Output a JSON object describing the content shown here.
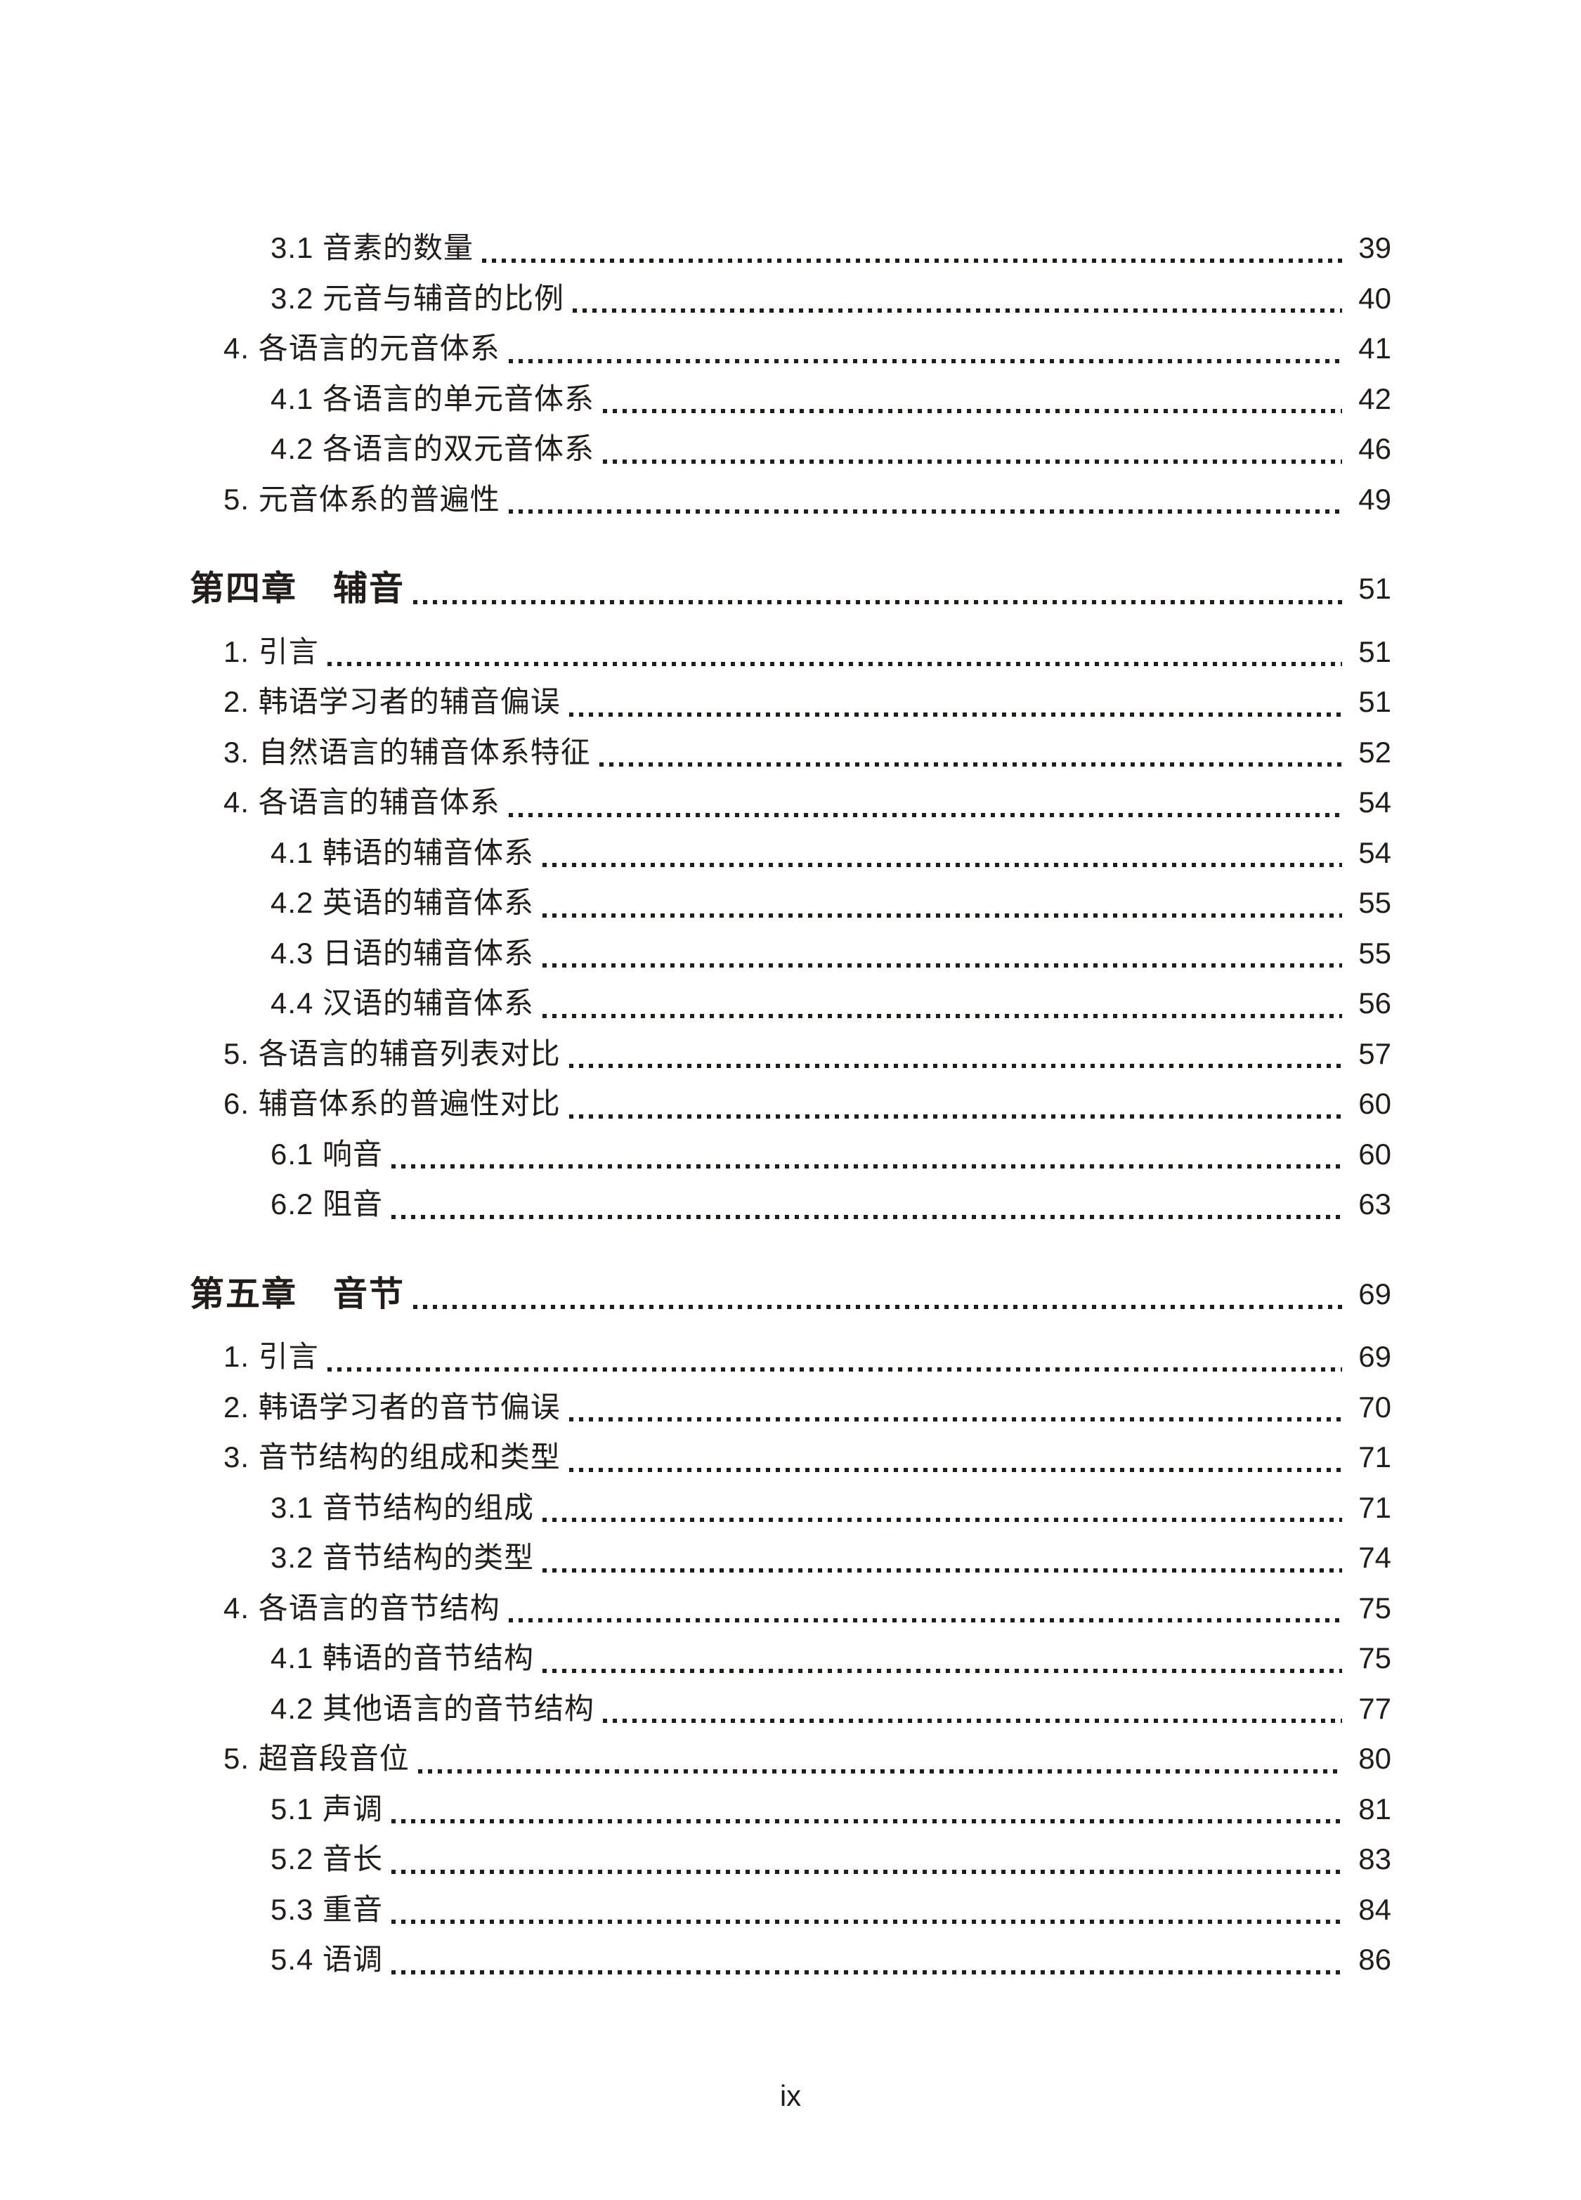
{
  "page": {
    "footer": "ix",
    "text_color": "#231c19",
    "background": "#ffffff"
  },
  "toc": {
    "items": [
      {
        "level": 2,
        "label": "3.1 音素的数量",
        "page": "39"
      },
      {
        "level": 2,
        "label": "3.2 元音与辅音的比例",
        "page": "40"
      },
      {
        "level": 1,
        "label": "4. 各语言的元音体系",
        "page": "41"
      },
      {
        "level": 2,
        "label": "4.1 各语言的单元音体系",
        "page": "42"
      },
      {
        "level": 2,
        "label": "4.2 各语言的双元音体系",
        "page": "46"
      },
      {
        "level": 1,
        "label": "5. 元音体系的普遍性",
        "page": "49"
      },
      {
        "level": 0,
        "label": "第四章　辅音",
        "page": "51"
      },
      {
        "level": 1,
        "label": "1. 引言",
        "page": "51"
      },
      {
        "level": 1,
        "label": "2. 韩语学习者的辅音偏误",
        "page": "51"
      },
      {
        "level": 1,
        "label": "3. 自然语言的辅音体系特征",
        "page": "52"
      },
      {
        "level": 1,
        "label": "4. 各语言的辅音体系",
        "page": "54"
      },
      {
        "level": 2,
        "label": "4.1 韩语的辅音体系",
        "page": "54"
      },
      {
        "level": 2,
        "label": "4.2 英语的辅音体系",
        "page": "55"
      },
      {
        "level": 2,
        "label": "4.3 日语的辅音体系",
        "page": "55"
      },
      {
        "level": 2,
        "label": "4.4 汉语的辅音体系",
        "page": "56"
      },
      {
        "level": 1,
        "label": "5. 各语言的辅音列表对比",
        "page": "57"
      },
      {
        "level": 1,
        "label": "6. 辅音体系的普遍性对比",
        "page": "60"
      },
      {
        "level": 2,
        "label": "6.1 响音",
        "page": "60"
      },
      {
        "level": 2,
        "label": "6.2 阻音",
        "page": "63"
      },
      {
        "level": 0,
        "label": "第五章　音节",
        "page": "69"
      },
      {
        "level": 1,
        "label": "1. 引言",
        "page": "69"
      },
      {
        "level": 1,
        "label": "2. 韩语学习者的音节偏误",
        "page": "70"
      },
      {
        "level": 1,
        "label": "3. 音节结构的组成和类型",
        "page": "71"
      },
      {
        "level": 2,
        "label": "3.1 音节结构的组成",
        "page": "71"
      },
      {
        "level": 2,
        "label": "3.2 音节结构的类型",
        "page": "74"
      },
      {
        "level": 1,
        "label": "4. 各语言的音节结构",
        "page": "75"
      },
      {
        "level": 2,
        "label": "4.1 韩语的音节结构",
        "page": "75"
      },
      {
        "level": 2,
        "label": "4.2 其他语言的音节结构",
        "page": "77"
      },
      {
        "level": 1,
        "label": "5. 超音段音位",
        "page": "80"
      },
      {
        "level": 2,
        "label": "5.1 声调",
        "page": "81"
      },
      {
        "level": 2,
        "label": "5.2 音长",
        "page": "83"
      },
      {
        "level": 2,
        "label": "5.3 重音",
        "page": "84"
      },
      {
        "level": 2,
        "label": "5.4 语调",
        "page": "86"
      }
    ]
  }
}
